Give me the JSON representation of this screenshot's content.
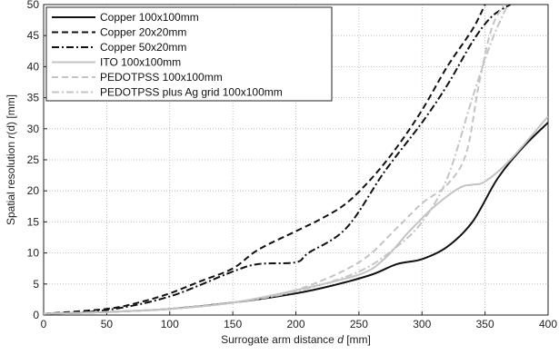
{
  "chart_data": {
    "type": "line",
    "title": "",
    "xlabel": "Surrogate arm distance d [mm]",
    "ylabel": "Spatial resolution r(d) [mm]",
    "xlim": [
      0,
      400
    ],
    "ylim": [
      0,
      50
    ],
    "xticks": [
      0,
      50,
      100,
      150,
      200,
      250,
      300,
      350,
      400
    ],
    "yticks": [
      0,
      5,
      10,
      15,
      20,
      25,
      30,
      35,
      40,
      45,
      50
    ],
    "grid": true,
    "legend_position": "top-left",
    "series": [
      {
        "name": "Copper 100x100mm",
        "color": "#111111",
        "dash": "solid",
        "x": [
          0,
          50,
          100,
          150,
          200,
          230,
          260,
          280,
          300,
          320,
          340,
          360,
          380,
          400
        ],
        "y": [
          0.2,
          0.5,
          1.0,
          2.0,
          3.5,
          4.8,
          6.5,
          8.2,
          9.0,
          11.0,
          15.0,
          22.0,
          27.0,
          31.0
        ]
      },
      {
        "name": "Copper 20x20mm",
        "color": "#111111",
        "dash": "dashed",
        "x": [
          0,
          50,
          75,
          100,
          125,
          150,
          170,
          200,
          220,
          240,
          260,
          280,
          300,
          320,
          340,
          350
        ],
        "y": [
          0.2,
          1.0,
          2.0,
          3.5,
          5.5,
          7.5,
          10.5,
          13.5,
          15.5,
          18.0,
          22.0,
          27.0,
          33.0,
          40.0,
          46.0,
          50.0
        ]
      },
      {
        "name": "Copper 50x20mm",
        "color": "#111111",
        "dash": "dashdot",
        "x": [
          0,
          50,
          100,
          150,
          170,
          200,
          210,
          240,
          270,
          300,
          320,
          340,
          355,
          370
        ],
        "y": [
          0.2,
          0.8,
          3.0,
          7.0,
          8.2,
          8.5,
          10.0,
          14.0,
          23.0,
          31.0,
          37.0,
          44.0,
          48.0,
          50.0
        ]
      },
      {
        "name": "ITO 100x100mm",
        "color": "#c4c4c4",
        "dash": "solid",
        "x": [
          0,
          50,
          100,
          150,
          200,
          250,
          270,
          290,
          310,
          330,
          340,
          350,
          370,
          400
        ],
        "y": [
          0.2,
          0.5,
          1.0,
          2.0,
          4.0,
          6.5,
          9.0,
          13.5,
          17.5,
          20.5,
          21.0,
          21.5,
          25.0,
          32.0
        ]
      },
      {
        "name": "PEDOTPSS 100x100mm",
        "color": "#c4c4c4",
        "dash": "dashed",
        "x": [
          0,
          50,
          100,
          150,
          200,
          250,
          280,
          300,
          320,
          335,
          345,
          355,
          365
        ],
        "y": [
          0.2,
          0.5,
          1.0,
          2.0,
          4.0,
          8.5,
          14.0,
          18.0,
          21.0,
          26.0,
          37.0,
          46.0,
          50.0
        ]
      },
      {
        "name": "PEDOTPSS plus Ag grid 100x100mm",
        "color": "#c4c4c4",
        "dash": "dashdot",
        "x": [
          0,
          50,
          100,
          150,
          200,
          250,
          280,
          300,
          320,
          340,
          355,
          368
        ],
        "y": [
          0.2,
          0.5,
          1.0,
          2.0,
          3.8,
          7.0,
          11.0,
          15.0,
          22.0,
          35.0,
          44.0,
          50.0
        ]
      }
    ]
  }
}
